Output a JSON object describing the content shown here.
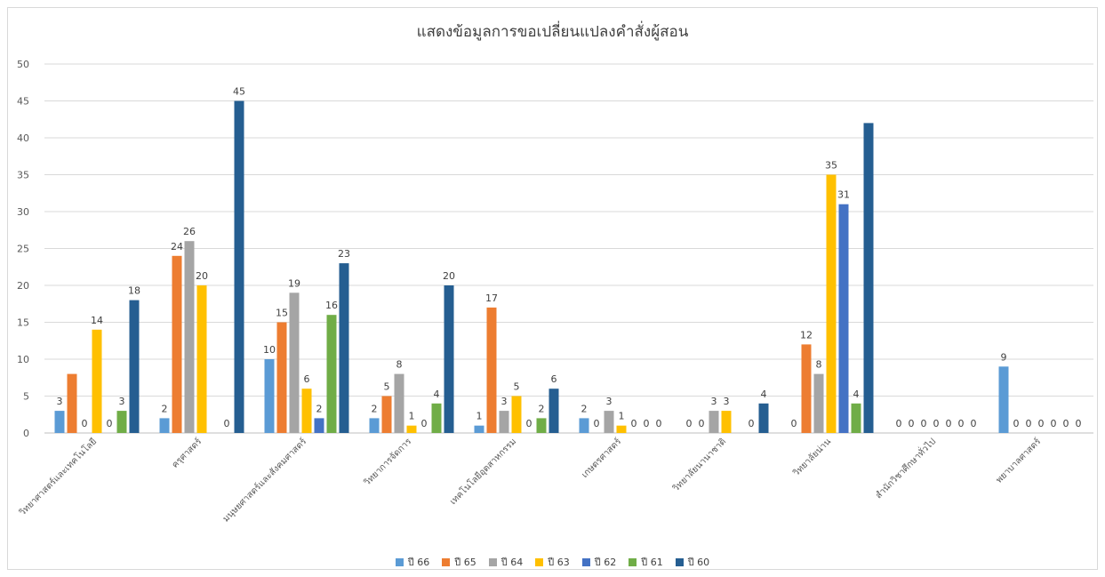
{
  "chart_data": {
    "type": "bar",
    "title": "แสดงข้อมูลการขอเปลี่ยนแปลงคำสั่งผู้สอน",
    "categories": [
      "วิทยาศาสตร์และเทคโนโลยี",
      "ครุศาสตร์",
      "มนุษยศาสตร์และสังคมศาสตร์",
      "วิทยาการจัดการ",
      "เทคโนโลยีอุตสาหกรรม",
      "เกษตรศาสตร์",
      "วิทยาลัยนานาชาติ",
      "วิทยาลัยน่าน",
      "สำนักวิชาศึกษาทั่วไป",
      "พยาบาลศาสตร์"
    ],
    "series": [
      {
        "name": "ปี 66",
        "color": "#5B9BD5",
        "values": [
          3,
          2,
          10,
          2,
          1,
          2,
          0,
          0,
          0,
          9
        ]
      },
      {
        "name": "ปี 65",
        "color": "#ED7D31",
        "values": [
          8,
          24,
          15,
          5,
          17,
          0,
          0,
          12,
          0,
          0
        ]
      },
      {
        "name": "ปี 64",
        "color": "#A5A5A5",
        "values": [
          0,
          26,
          19,
          8,
          3,
          3,
          3,
          8,
          0,
          0
        ]
      },
      {
        "name": "ปี 63",
        "color": "#FFC000",
        "values": [
          14,
          20,
          6,
          1,
          5,
          1,
          3,
          35,
          0,
          0
        ]
      },
      {
        "name": "ปี 62",
        "color": "#4472C4",
        "values": [
          0,
          0,
          2,
          0,
          0,
          0,
          0,
          31,
          0,
          0
        ]
      },
      {
        "name": "ปี 61",
        "color": "#70AD47",
        "values": [
          3,
          0,
          16,
          4,
          2,
          0,
          0,
          4,
          0,
          0
        ]
      },
      {
        "name": "ปี 60",
        "color": "#255E91",
        "values": [
          18,
          45,
          23,
          20,
          6,
          0,
          4,
          42,
          0,
          0
        ]
      }
    ],
    "labels_shown": [
      [
        true,
        false,
        true,
        true,
        true,
        true,
        true
      ],
      [
        true,
        true,
        true,
        true,
        false,
        true,
        true
      ],
      [
        true,
        true,
        true,
        true,
        true,
        true,
        true
      ],
      [
        true,
        true,
        true,
        true,
        true,
        true,
        true
      ],
      [
        true,
        true,
        true,
        true,
        true,
        true,
        true
      ],
      [
        true,
        true,
        true,
        true,
        true,
        true,
        true
      ],
      [
        true,
        true,
        true,
        true,
        false,
        true,
        true
      ],
      [
        true,
        true,
        true,
        true,
        true,
        true,
        false
      ],
      [
        true,
        true,
        true,
        true,
        true,
        true,
        true
      ],
      [
        true,
        true,
        true,
        true,
        true,
        true,
        true
      ]
    ],
    "ylim": [
      0,
      50
    ],
    "yticks": [
      0,
      5,
      10,
      15,
      20,
      25,
      30,
      35,
      40,
      45,
      50
    ],
    "grid": true,
    "legend": "bottom",
    "xlabel": "",
    "ylabel": ""
  }
}
